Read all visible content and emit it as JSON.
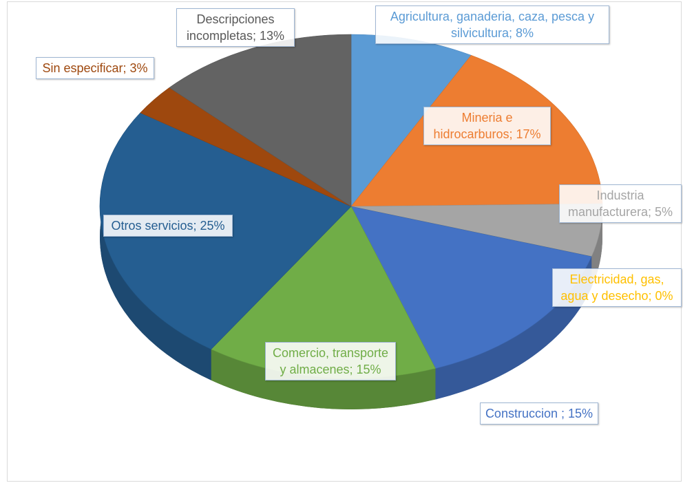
{
  "chart_data": {
    "type": "pie",
    "three_d": true,
    "categories": [
      "Agricultura, ganaderia, caza, pesca y silvicultura;",
      "Mineria e hidrocarburos;",
      "Industria manufacturera;",
      "Electricidad, gas, agua y desecho;",
      "Construccion ;",
      "Comercio, transporte y almacenes;",
      "Otros servicios;",
      "Sin especificar;",
      "Descripciones incompletas;"
    ],
    "values": [
      8,
      17,
      5,
      0,
      15,
      15,
      25,
      3,
      13
    ],
    "value_labels": [
      "8%",
      "17%",
      "5%",
      "0%",
      "15%",
      "15%",
      "25%",
      "3%",
      "13%"
    ],
    "colors": [
      "#5b9bd5",
      "#ed7d31",
      "#a5a5a5",
      "#ffc000",
      "#4472c4",
      "#70ad47",
      "#255e91",
      "#9e480e",
      "#636363"
    ]
  }
}
